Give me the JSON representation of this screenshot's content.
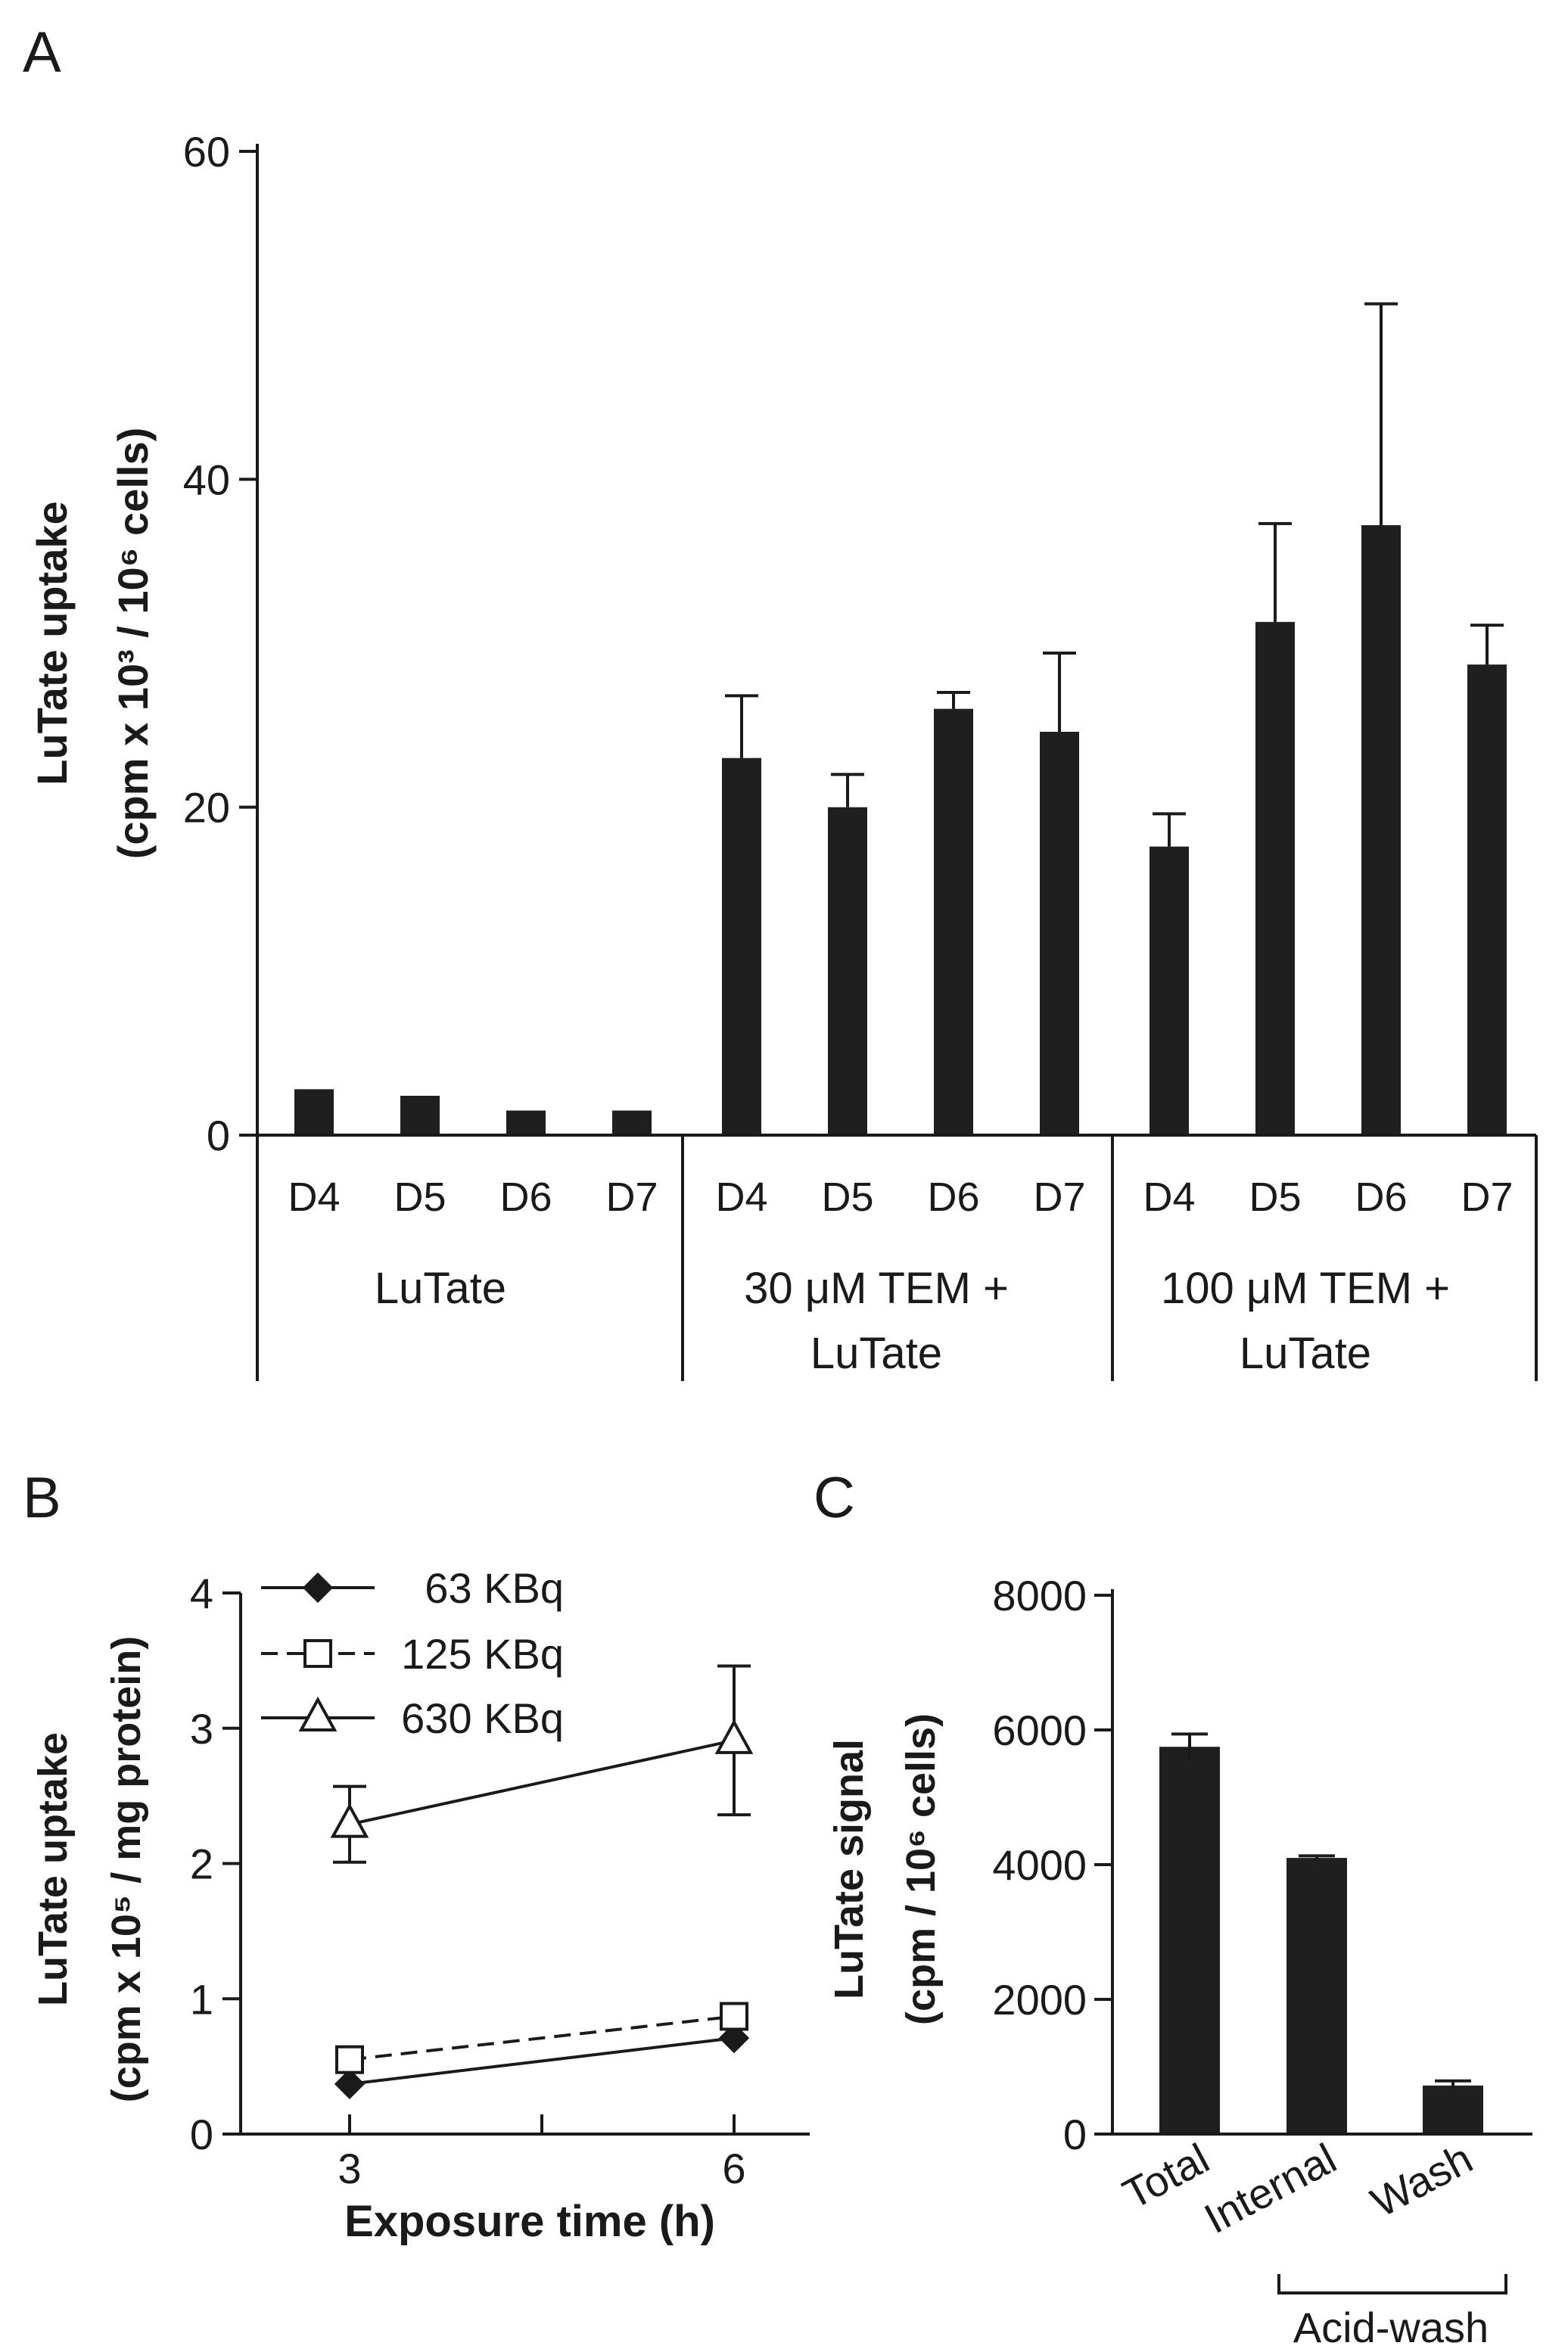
{
  "chart_data": [
    {
      "panel": "A",
      "type": "bar",
      "ylabel_line1": "LuTate uptake",
      "ylabel_line2": "(cpm x 10³ / 10⁶ cells)",
      "ylim": [
        0,
        60
      ],
      "yticks": [
        "0",
        "20",
        "40",
        "60"
      ],
      "categories": [
        "D4",
        "D5",
        "D6",
        "D7",
        "D4",
        "D5",
        "D6",
        "D7",
        "D4",
        "D5",
        "D6",
        "D7"
      ],
      "values": [
        2.8,
        2.4,
        1.5,
        1.5,
        23.0,
        20.0,
        26.0,
        24.6,
        17.6,
        31.3,
        37.2,
        28.7
      ],
      "errors": [
        0,
        0,
        0,
        0,
        3.8,
        2.0,
        1.0,
        4.8,
        2.0,
        6.0,
        13.5,
        2.4
      ],
      "groups": [
        {
          "line1": "LuTate",
          "line2": ""
        },
        {
          "line1": "30 μM TEM +",
          "line2": "LuTate"
        },
        {
          "line1": "100 μM TEM +",
          "line2": "LuTate"
        }
      ]
    },
    {
      "panel": "B",
      "type": "line",
      "ylabel_line1": "LuTate uptake",
      "ylabel_line2": "(cpm x 10⁵ / mg protein)",
      "xlabel": "Exposure time (h)",
      "ylim": [
        0,
        4
      ],
      "yticks": [
        "0",
        "1",
        "2",
        "3",
        "4"
      ],
      "x": [
        3,
        6
      ],
      "xticks": [
        "3",
        "6"
      ],
      "series": [
        {
          "name": "63 KBq",
          "values": [
            0.37,
            0.71
          ],
          "errors": [
            0,
            0
          ],
          "marker": "diamond",
          "dash": false
        },
        {
          "name": "125 KBq",
          "values": [
            0.55,
            0.87
          ],
          "errors": [
            0,
            0
          ],
          "marker": "square",
          "dash": true
        },
        {
          "name": "630 KBq",
          "values": [
            2.29,
            2.91
          ],
          "errors": [
            0.28,
            0.55
          ],
          "marker": "triangle",
          "dash": false
        }
      ]
    },
    {
      "panel": "C",
      "type": "bar",
      "ylabel_line1": "LuTate signal",
      "ylabel_line2": "(cpm / 10⁶ cells)",
      "ylim": [
        0,
        8000
      ],
      "yticks": [
        "0",
        "2000",
        "4000",
        "6000",
        "8000"
      ],
      "categories": [
        "Total",
        "Internal",
        "Wash"
      ],
      "values": [
        5750,
        4100,
        720
      ],
      "errors": [
        190,
        30,
        70
      ],
      "bracket_label": "Acid-wash"
    }
  ]
}
